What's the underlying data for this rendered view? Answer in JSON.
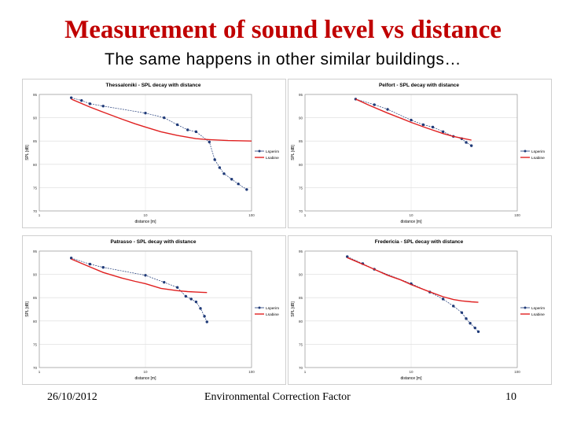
{
  "slide": {
    "title": "Measurement of sound level vs distance",
    "subtitle": "The same happens in other similar buildings…",
    "footer_date": "26/10/2012",
    "footer_center": "Environmental Correction Factor",
    "footer_page": "10"
  },
  "colors": {
    "measured": "#1f3a78",
    "sabine": "#e02020",
    "title": "#c00000"
  },
  "chart_data": [
    {
      "type": "line",
      "title": "Thessaloniki - SPL decay with distance",
      "xlabel": "distance [m]",
      "ylabel": "SPL [dB]",
      "x_scale": "log",
      "xlim": [
        1,
        100
      ],
      "ylim": [
        70,
        95
      ],
      "x_tick_labels": [
        "1",
        "10",
        "100"
      ],
      "y_tick_labels": [
        "95",
        "90",
        "85",
        "80",
        "75",
        "70"
      ],
      "y_ticks": [
        95,
        90,
        85,
        80,
        75,
        70
      ],
      "legend_position": "right",
      "series": [
        {
          "name": "Lsperim",
          "marker": true,
          "x": [
            2.0,
            2.5,
            3.0,
            4.0,
            10,
            15,
            20,
            25,
            30,
            40,
            45,
            50,
            55,
            65,
            75,
            90
          ],
          "y": [
            94.3,
            93.7,
            93.0,
            92.5,
            91.0,
            90.0,
            88.5,
            87.4,
            87.0,
            84.8,
            81.0,
            79.3,
            78.0,
            76.8,
            75.8,
            74.6
          ]
        },
        {
          "name": "Lsabine",
          "marker": false,
          "x": [
            2,
            3,
            4,
            6,
            8,
            10,
            14,
            20,
            30,
            40,
            60,
            100
          ],
          "y": [
            94.0,
            92.3,
            91.2,
            89.7,
            88.7,
            88.0,
            87.0,
            86.2,
            85.5,
            85.3,
            85.1,
            85.0
          ]
        }
      ]
    },
    {
      "type": "line",
      "title": "Pelfort - SPL decay with distance",
      "xlabel": "distance [m]",
      "ylabel": "SPL [dB]",
      "x_scale": "log",
      "xlim": [
        1,
        100
      ],
      "ylim": [
        70,
        95
      ],
      "x_tick_labels": [
        "1",
        "10",
        "100"
      ],
      "y_tick_labels": [
        "95",
        "90",
        "85",
        "80",
        "75",
        "70"
      ],
      "y_ticks": [
        95,
        90,
        85,
        80,
        75,
        70
      ],
      "legend_position": "right",
      "series": [
        {
          "name": "Lsperim",
          "marker": true,
          "x": [
            3.0,
            4.5,
            6.0,
            10,
            13,
            16,
            20,
            25,
            30,
            33,
            37
          ],
          "y": [
            94.0,
            92.8,
            91.8,
            89.5,
            88.5,
            88.0,
            87.0,
            86.0,
            85.5,
            84.7,
            84.0
          ]
        },
        {
          "name": "Lsabine",
          "marker": false,
          "x": [
            3,
            4,
            6,
            8,
            10,
            14,
            20,
            25,
            30,
            37
          ],
          "y": [
            94.0,
            92.7,
            91.0,
            89.9,
            89.0,
            87.8,
            86.6,
            86.0,
            85.6,
            85.2
          ]
        }
      ]
    },
    {
      "type": "line",
      "title": "Patrasso - SPL decay with distance",
      "xlabel": "distance [m]",
      "ylabel": "SPL [dB]",
      "x_scale": "log",
      "xlim": [
        1,
        100
      ],
      "ylim": [
        70,
        95
      ],
      "x_tick_labels": [
        "1",
        "10",
        "100"
      ],
      "y_tick_labels": [
        "95",
        "90",
        "85",
        "80",
        "75",
        "70"
      ],
      "y_ticks": [
        95,
        90,
        85,
        80,
        75,
        70
      ],
      "legend_position": "right",
      "series": [
        {
          "name": "Lsperim",
          "marker": true,
          "x": [
            2.0,
            3.0,
            4.0,
            10,
            15,
            20,
            24,
            27,
            30,
            33,
            36,
            38
          ],
          "y": [
            93.5,
            92.2,
            91.5,
            89.8,
            88.3,
            87.2,
            85.3,
            84.7,
            84.1,
            82.7,
            81.0,
            79.8
          ]
        },
        {
          "name": "Lsabine",
          "marker": false,
          "x": [
            2,
            3,
            4,
            6,
            8,
            10,
            14,
            20,
            25,
            30,
            38
          ],
          "y": [
            93.3,
            91.6,
            90.4,
            89.2,
            88.5,
            88.0,
            87.0,
            86.5,
            86.3,
            86.2,
            86.1
          ]
        }
      ]
    },
    {
      "type": "line",
      "title": "Fredericia - SPL decay with distance",
      "xlabel": "distance [m]",
      "ylabel": "SPL [dB]",
      "x_scale": "log",
      "xlim": [
        1,
        100
      ],
      "ylim": [
        70,
        95
      ],
      "x_tick_labels": [
        "1",
        "10",
        "100"
      ],
      "y_tick_labels": [
        "95",
        "90",
        "85",
        "80",
        "75",
        "70"
      ],
      "y_ticks": [
        95,
        90,
        85,
        80,
        75,
        70
      ],
      "legend_position": "right",
      "series": [
        {
          "name": "Lsperim",
          "marker": true,
          "x": [
            2.5,
            3.5,
            4.5,
            10,
            15,
            20,
            25,
            30,
            33,
            36,
            40,
            43
          ],
          "y": [
            93.8,
            92.3,
            91.1,
            88.0,
            86.2,
            84.7,
            83.2,
            81.8,
            80.5,
            79.5,
            78.5,
            77.7
          ]
        },
        {
          "name": "Lsabine",
          "marker": false,
          "x": [
            2.5,
            4,
            6,
            8,
            10,
            14,
            20,
            25,
            30,
            37,
            43
          ],
          "y": [
            93.6,
            91.6,
            89.8,
            88.8,
            87.8,
            86.5,
            85.2,
            84.6,
            84.3,
            84.1,
            84.0
          ]
        }
      ]
    }
  ]
}
